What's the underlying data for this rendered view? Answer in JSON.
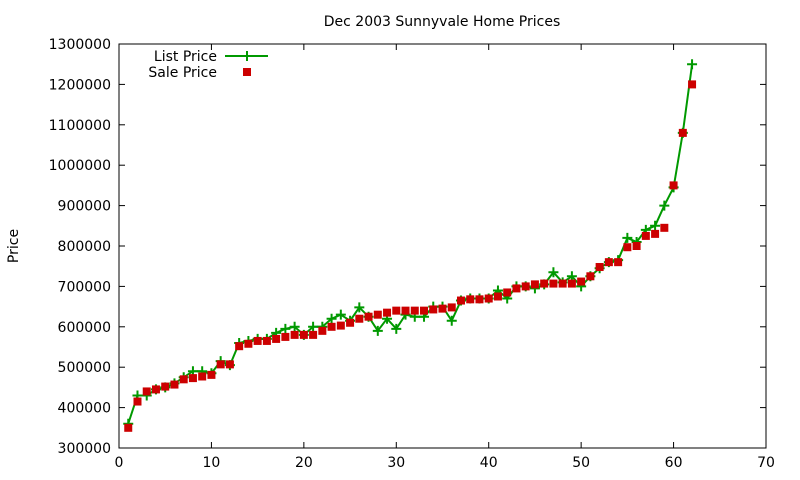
{
  "chart_data": {
    "type": "line",
    "title": "Dec 2003 Sunnyvale Home Prices",
    "xlabel": "",
    "ylabel": "Price",
    "xlim": [
      0,
      70
    ],
    "ylim": [
      300000,
      1300000
    ],
    "xticks": [
      0,
      10,
      20,
      30,
      40,
      50,
      60,
      70
    ],
    "yticks": [
      300000,
      400000,
      500000,
      600000,
      700000,
      800000,
      900000,
      1000000,
      1100000,
      1200000,
      1300000
    ],
    "grid": false,
    "legend_position": "top-left",
    "series": [
      {
        "name": "List Price",
        "style": "linespoints",
        "marker": "plus",
        "color": "#009900",
        "x": [
          1,
          2,
          3,
          4,
          5,
          6,
          7,
          8,
          9,
          10,
          11,
          12,
          13,
          14,
          15,
          16,
          17,
          18,
          19,
          20,
          21,
          22,
          23,
          24,
          25,
          26,
          27,
          28,
          29,
          30,
          31,
          32,
          33,
          34,
          35,
          36,
          37,
          38,
          39,
          40,
          41,
          42,
          43,
          44,
          45,
          46,
          47,
          48,
          49,
          50,
          51,
          52,
          53,
          54,
          55,
          56,
          57,
          58,
          59,
          60,
          61,
          62
        ],
        "values": [
          360000,
          430000,
          430000,
          445000,
          450000,
          460000,
          475000,
          490000,
          490000,
          485000,
          515000,
          505000,
          560000,
          565000,
          570000,
          570000,
          585000,
          595000,
          600000,
          580000,
          600000,
          600000,
          620000,
          630000,
          615000,
          648000,
          625000,
          590000,
          620000,
          595000,
          630000,
          625000,
          625000,
          650000,
          650000,
          615000,
          665000,
          670000,
          670000,
          670000,
          690000,
          670000,
          700000,
          700000,
          695000,
          705000,
          735000,
          710000,
          725000,
          700000,
          725000,
          745000,
          760000,
          765000,
          820000,
          810000,
          840000,
          850000,
          900000,
          945000,
          1080000,
          1250000
        ]
      },
      {
        "name": "Sale Price",
        "style": "points",
        "marker": "square",
        "color": "#cc0000",
        "x": [
          1,
          2,
          3,
          4,
          5,
          6,
          7,
          8,
          9,
          10,
          11,
          12,
          13,
          14,
          15,
          16,
          17,
          18,
          19,
          20,
          21,
          22,
          23,
          24,
          25,
          26,
          27,
          28,
          29,
          30,
          31,
          32,
          33,
          34,
          35,
          36,
          37,
          38,
          39,
          40,
          41,
          42,
          43,
          44,
          45,
          46,
          47,
          48,
          49,
          50,
          51,
          52,
          53,
          54,
          55,
          56,
          57,
          58,
          59,
          60,
          61,
          62
        ],
        "values": [
          350000,
          415000,
          440000,
          445000,
          452000,
          457000,
          470000,
          473000,
          477000,
          481000,
          507000,
          507000,
          552000,
          558000,
          565000,
          565000,
          570000,
          575000,
          580000,
          580000,
          580000,
          590000,
          600000,
          603000,
          610000,
          620000,
          625000,
          630000,
          635000,
          640000,
          640000,
          640000,
          640000,
          643000,
          645000,
          648000,
          665000,
          668000,
          668000,
          670000,
          675000,
          685000,
          695000,
          700000,
          705000,
          707000,
          707000,
          707000,
          707000,
          712000,
          725000,
          748000,
          760000,
          760000,
          797000,
          800000,
          825000,
          830000,
          845000,
          950000,
          1080000,
          1200000
        ]
      }
    ]
  }
}
